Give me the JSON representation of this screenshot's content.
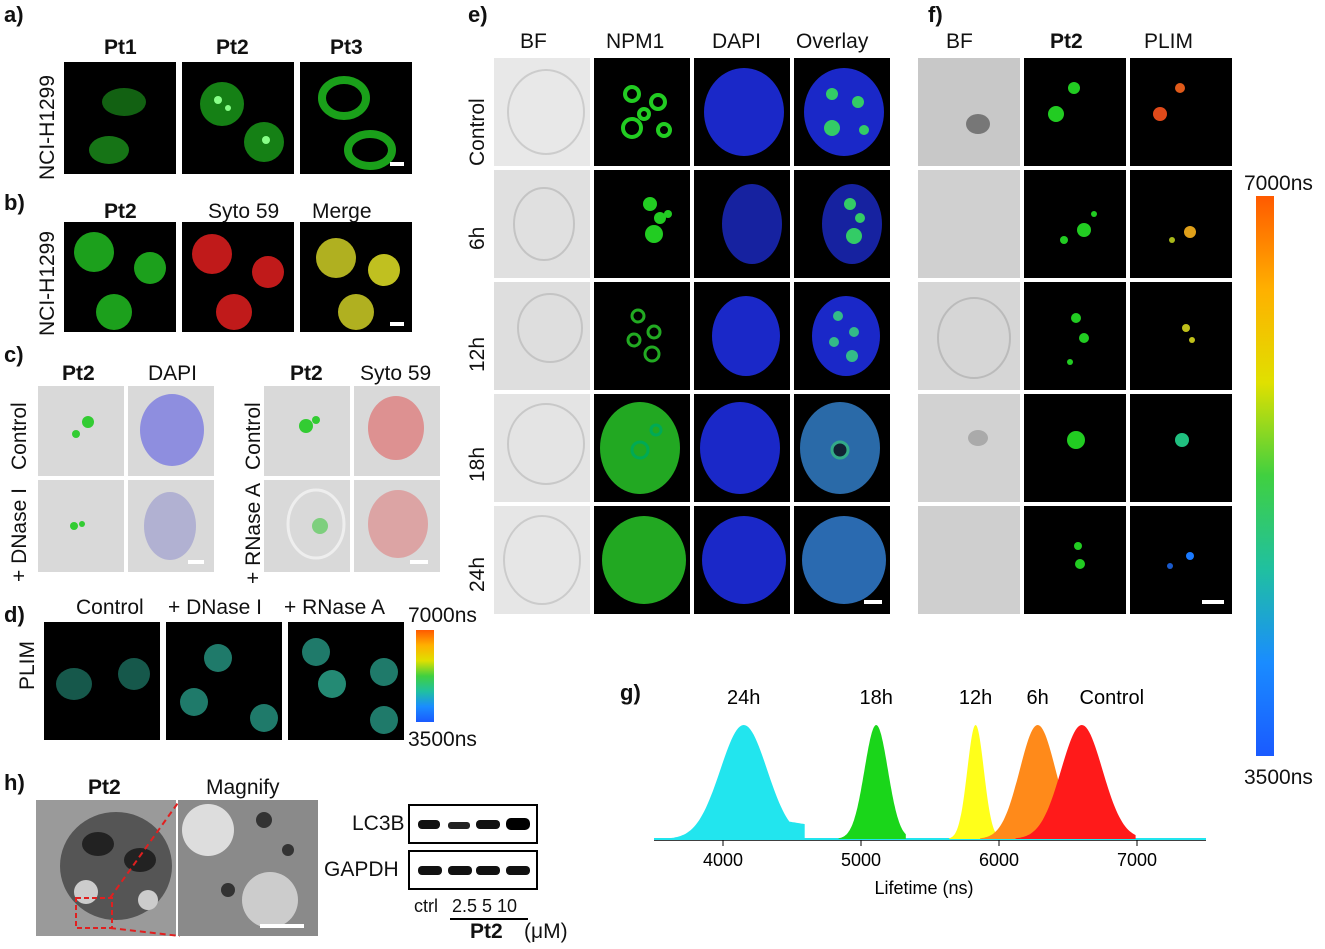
{
  "panels": {
    "a": {
      "letter": "a)",
      "cols": [
        "Pt1",
        "Pt2",
        "Pt3"
      ],
      "row_label": "NCI-H1299"
    },
    "b": {
      "letter": "b)",
      "cols": [
        "Pt2",
        "Syto 59",
        "Merge"
      ],
      "row_label": "NCI-H1299"
    },
    "c": {
      "letter": "c)",
      "left_cols": [
        "Pt2",
        "DAPI"
      ],
      "right_cols": [
        "Pt2",
        "Syto 59"
      ],
      "left_rows": [
        "Control",
        "+ DNase I"
      ],
      "right_rows": [
        "Control",
        "+ RNase A"
      ]
    },
    "d": {
      "letter": "d)",
      "cols": [
        "Control",
        "+ DNase I",
        "+ RNase A"
      ],
      "row_label": "PLIM",
      "cbar_max": "7000ns",
      "cbar_min": "3500ns"
    },
    "e": {
      "letter": "e)",
      "cols": [
        "BF",
        "NPM1",
        "DAPI",
        "Overlay"
      ],
      "rows": [
        "Control",
        "6h",
        "12h",
        "18h",
        "24h"
      ]
    },
    "f": {
      "letter": "f)",
      "cols": [
        "BF",
        "Pt2",
        "PLIM"
      ],
      "cbar_max": "7000ns",
      "cbar_min": "3500ns"
    },
    "g": {
      "letter": "g)"
    },
    "h": {
      "letter": "h)",
      "img_labels": [
        "Pt2",
        "Magnify"
      ],
      "blot_rows": [
        "LC3B",
        "GAPDH"
      ],
      "lane_ctrl": "ctrl",
      "lane_doses": "2.5 5 10",
      "compound": "Pt2",
      "unit": "(μM)"
    }
  },
  "chart_data": {
    "type": "area",
    "xlabel": "Lifetime (ns)",
    "xlim": [
      3500,
      7500
    ],
    "xticks": [
      4000,
      5000,
      6000,
      7000
    ],
    "series": [
      {
        "name": "24h",
        "color": "#22e5ee",
        "peak": 4150,
        "width": 170,
        "tail": true
      },
      {
        "name": "18h",
        "color": "#1ad61a",
        "peak": 5110,
        "width": 85
      },
      {
        "name": "12h",
        "color": "#ffff1a",
        "peak": 5830,
        "width": 60
      },
      {
        "name": "6h",
        "color": "#ff8a1a",
        "peak": 6280,
        "width": 130
      },
      {
        "name": "Control",
        "color": "#ff1a1a",
        "peak": 6600,
        "width": 150
      }
    ]
  },
  "colors": {
    "green": "#20c020",
    "red": "#e02020",
    "blue": "#2030e0",
    "bf": "#d9d9d9"
  }
}
